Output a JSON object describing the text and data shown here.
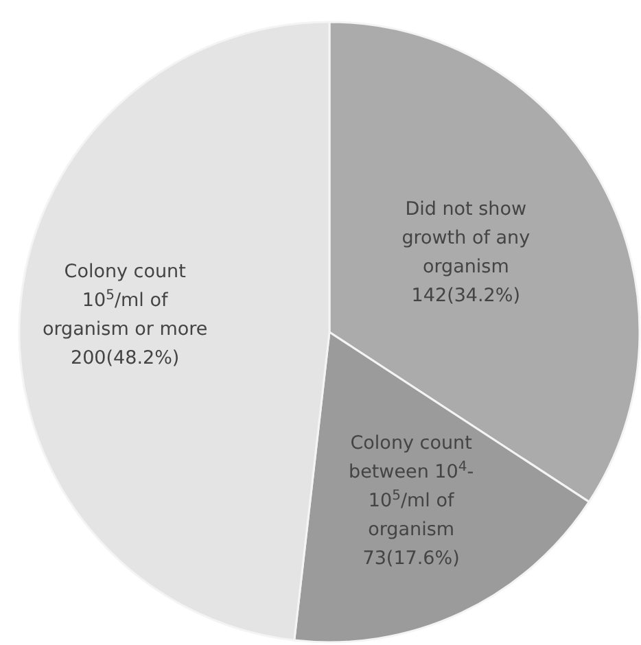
{
  "chart_data": {
    "type": "pie",
    "categories": [
      "Did not show growth of any organism",
      "Colony count between 10$^{4}$- 10$^{5}$/ml of organism",
      "Colony count 10$^{5}$/ml of organism or more"
    ],
    "values": [
      142,
      73,
      200
    ],
    "value_labels": [
      "142(34.2%)",
      "73(17.6%)",
      "200(48.2%)"
    ],
    "colors": [
      "#ababab",
      "#9b9b9b",
      "#e4e4e4"
    ]
  }
}
